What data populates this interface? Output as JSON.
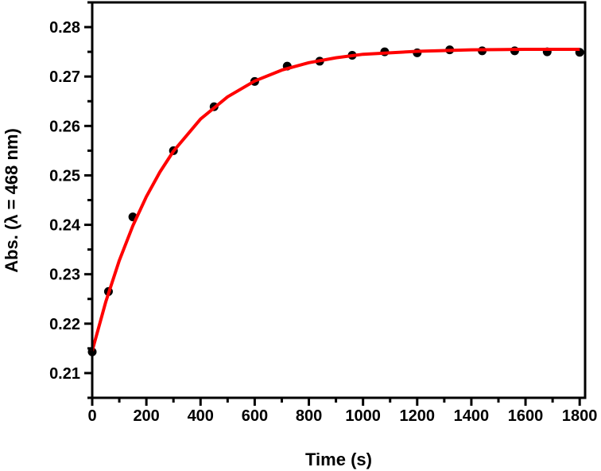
{
  "chart_data": {
    "type": "scatter",
    "title": "",
    "xlabel": "Time (s)",
    "ylabel": "Abs. (λ = 468 nm)",
    "xlim": [
      0,
      1820
    ],
    "ylim": [
      0.205,
      0.285
    ],
    "grid": false,
    "x_ticks": [
      "0",
      "200",
      "400",
      "600",
      "800",
      "1000",
      "1200",
      "1400",
      "1600",
      "1800"
    ],
    "y_ticks": [
      "0.21",
      "0.22",
      "0.23",
      "0.24",
      "0.25",
      "0.26",
      "0.27",
      "0.28"
    ],
    "series": [
      {
        "kind": "points",
        "color": "#000000",
        "x": [
          0,
          60,
          150,
          300,
          450,
          600,
          720,
          840,
          960,
          1080,
          1200,
          1320,
          1440,
          1560,
          1680,
          1800
        ],
        "y": [
          0.2143,
          0.2265,
          0.2416,
          0.255,
          0.2639,
          0.269,
          0.2721,
          0.2731,
          0.2743,
          0.275,
          0.2748,
          0.2754,
          0.2752,
          0.2752,
          0.275,
          0.2749
        ]
      },
      {
        "kind": "fit-line",
        "color": "#ff0000",
        "model": "exponential rise",
        "x": [
          0,
          50,
          100,
          150,
          200,
          250,
          300,
          400,
          500,
          600,
          700,
          800,
          900,
          1000,
          1200,
          1400,
          1600,
          1800
        ],
        "y": [
          0.2145,
          0.2244,
          0.2328,
          0.2398,
          0.2457,
          0.2507,
          0.2549,
          0.2614,
          0.2659,
          0.2691,
          0.2713,
          0.2728,
          0.2738,
          0.2745,
          0.2751,
          0.2754,
          0.2755,
          0.2755
        ]
      }
    ]
  }
}
